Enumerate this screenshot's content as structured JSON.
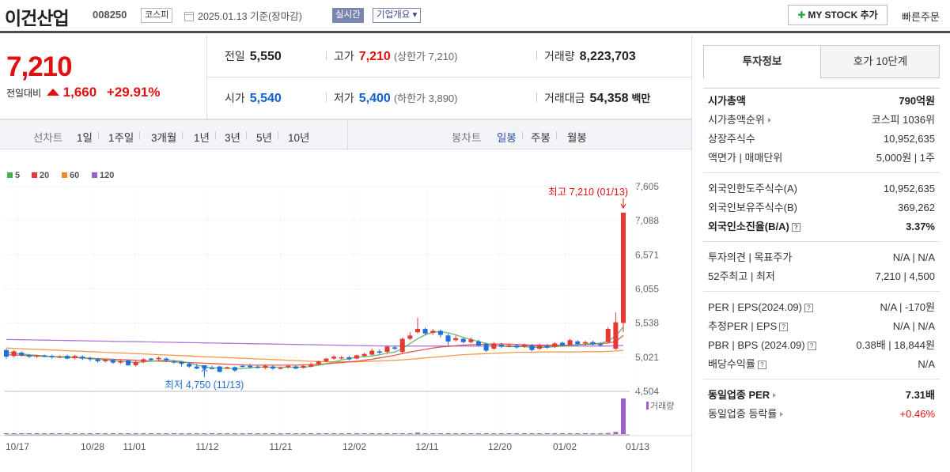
{
  "header": {
    "company": "이건산업",
    "code": "008250",
    "market": "코스피",
    "date": "2025.01.13 기준(장마감)",
    "realtime": "실시간",
    "overview": "기업개요 ▾",
    "mystock": "MY STOCK 추가",
    "quick_order": "빠른주문"
  },
  "price": {
    "current": "7,210",
    "change_label": "전일대비",
    "change": "1,660",
    "change_pct": "+29.91%",
    "prev_label": "전일",
    "prev": "5,550",
    "high_label": "고가",
    "high": "7,210",
    "upper_limit": "(상한가 7,210)",
    "volume_label": "거래량",
    "volume": "8,223,703",
    "open_label": "시가",
    "open": "5,540",
    "low_label": "저가",
    "low": "5,400",
    "lower_limit": "(하한가 3,890)",
    "amount_label": "거래대금",
    "amount": "54,358",
    "amount_unit": "백만"
  },
  "toolbar": {
    "line_label": "선차트",
    "periods": [
      "1일",
      "1주일",
      "3개월",
      "1년",
      "3년",
      "5년",
      "10년"
    ],
    "candle_label": "봉차트",
    "candles": [
      "일봉",
      "주봉",
      "월봉"
    ]
  },
  "tabs": [
    "투자정보",
    "호가 10단계"
  ],
  "invest": {
    "market_cap_label": "시가총액",
    "market_cap": "790억원",
    "rank_label": "시가총액순위",
    "rank": "코스피 1036위",
    "shares_label": "상장주식수",
    "shares": "10,952,635",
    "par_label": "액면가 | 매매단위",
    "par": "5,000원 | 1주",
    "foreign_limit_label": "외국인한도주식수(A)",
    "foreign_limit": "10,952,635",
    "foreign_hold_label": "외국인보유주식수(B)",
    "foreign_hold": "369,262",
    "foreign_rate_label": "외국인소진율(B/A)",
    "foreign_rate": "3.37%",
    "opinion_label": "투자의견 | 목표주가",
    "opinion": "N/A | N/A",
    "w52_label": "52주최고 | 최저",
    "w52": "7,210 | 4,500",
    "per_label": "PER | EPS(2024.09)",
    "per": "N/A | -170원",
    "est_per_label": "추정PER | EPS",
    "est_per": "N/A | N/A",
    "pbr_label": "PBR | BPS (2024.09)",
    "pbr": "0.38배 | 18,844원",
    "dividend_label": "배당수익률",
    "dividend": "N/A",
    "industry_per_label": "동일업종 PER",
    "industry_per": "7.31배",
    "industry_rate_label": "동일업종 등락률",
    "industry_rate": "+0.46%"
  },
  "chart_data": {
    "type": "candlestick",
    "ma_legend": [
      {
        "name": "5",
        "color": "#4caf50"
      },
      {
        "name": "20",
        "color": "#e53935"
      },
      {
        "name": "60",
        "color": "#f08a24"
      },
      {
        "name": "120",
        "color": "#9c5fd0"
      }
    ],
    "y_ticks": [
      7605,
      7088,
      6571,
      6055,
      5538,
      5021,
      4504
    ],
    "ylim": [
      4504,
      7605
    ],
    "x_ticks": [
      "10/17",
      "10/28",
      "11/01",
      "11/12",
      "11/21",
      "12/02",
      "12/11",
      "12/20",
      "01/02",
      "01/13"
    ],
    "high_annotation": "최고 7,210 (01/13)",
    "low_annotation": "최저 4,750 (11/13)",
    "volume_label": "거래량",
    "candles": [
      {
        "o": 5130,
        "c": 5030,
        "h": 5150,
        "l": 5000
      },
      {
        "o": 5040,
        "c": 5110,
        "h": 5130,
        "l": 5020
      },
      {
        "o": 5090,
        "c": 5050,
        "h": 5110,
        "l": 5030
      },
      {
        "o": 5050,
        "c": 5030,
        "h": 5070,
        "l": 5010
      },
      {
        "o": 5030,
        "c": 5050,
        "h": 5060,
        "l": 5010
      },
      {
        "o": 5050,
        "c": 5030,
        "h": 5060,
        "l": 5020
      },
      {
        "o": 5040,
        "c": 5020,
        "h": 5060,
        "l": 5000
      },
      {
        "o": 5030,
        "c": 5030,
        "h": 5050,
        "l": 5010
      },
      {
        "o": 5040,
        "c": 5000,
        "h": 5060,
        "l": 4990
      },
      {
        "o": 5010,
        "c": 5040,
        "h": 5060,
        "l": 4990
      },
      {
        "o": 5030,
        "c": 5000,
        "h": 5050,
        "l": 4980
      },
      {
        "o": 5010,
        "c": 4990,
        "h": 5030,
        "l": 4960
      },
      {
        "o": 4990,
        "c": 4960,
        "h": 5010,
        "l": 4940
      },
      {
        "o": 4960,
        "c": 4980,
        "h": 5000,
        "l": 4940
      },
      {
        "o": 4980,
        "c": 4940,
        "h": 4990,
        "l": 4920
      },
      {
        "o": 4940,
        "c": 4960,
        "h": 4980,
        "l": 4920
      },
      {
        "o": 4970,
        "c": 4900,
        "h": 4980,
        "l": 4890
      },
      {
        "o": 4900,
        "c": 4950,
        "h": 4970,
        "l": 4880
      },
      {
        "o": 4950,
        "c": 4990,
        "h": 5010,
        "l": 4930
      },
      {
        "o": 5000,
        "c": 4980,
        "h": 5010,
        "l": 4960
      },
      {
        "o": 4990,
        "c": 5010,
        "h": 5030,
        "l": 4970
      },
      {
        "o": 5000,
        "c": 4970,
        "h": 5020,
        "l": 4950
      },
      {
        "o": 4960,
        "c": 4940,
        "h": 4980,
        "l": 4920
      },
      {
        "o": 4950,
        "c": 4920,
        "h": 4960,
        "l": 4880
      },
      {
        "o": 4920,
        "c": 4880,
        "h": 4940,
        "l": 4860
      },
      {
        "o": 4880,
        "c": 4850,
        "h": 4920,
        "l": 4840
      },
      {
        "o": 4900,
        "c": 4850,
        "h": 4900,
        "l": 4750
      },
      {
        "o": 4860,
        "c": 4850,
        "h": 4890,
        "l": 4840
      },
      {
        "o": 4880,
        "c": 4800,
        "h": 4890,
        "l": 4790
      },
      {
        "o": 4870,
        "c": 4870,
        "h": 4880,
        "l": 4850
      },
      {
        "o": 4870,
        "c": 4820,
        "h": 4880,
        "l": 4800
      },
      {
        "o": 4890,
        "c": 4880,
        "h": 4910,
        "l": 4870
      },
      {
        "o": 4890,
        "c": 4870,
        "h": 4920,
        "l": 4850
      },
      {
        "o": 4880,
        "c": 4860,
        "h": 4900,
        "l": 4850
      },
      {
        "o": 4860,
        "c": 4890,
        "h": 4910,
        "l": 4840
      },
      {
        "o": 4880,
        "c": 4850,
        "h": 4900,
        "l": 4830
      },
      {
        "o": 4850,
        "c": 4860,
        "h": 4880,
        "l": 4840
      },
      {
        "o": 4870,
        "c": 4890,
        "h": 4900,
        "l": 4850
      },
      {
        "o": 4880,
        "c": 4850,
        "h": 4900,
        "l": 4840
      },
      {
        "o": 4860,
        "c": 4890,
        "h": 4900,
        "l": 4850
      },
      {
        "o": 4880,
        "c": 4910,
        "h": 4940,
        "l": 4870
      },
      {
        "o": 4920,
        "c": 4960,
        "h": 4970,
        "l": 4900
      },
      {
        "o": 4960,
        "c": 5000,
        "h": 5010,
        "l": 4940
      },
      {
        "o": 5000,
        "c": 5030,
        "h": 5050,
        "l": 4980
      },
      {
        "o": 5010,
        "c": 5020,
        "h": 5040,
        "l": 4990
      },
      {
        "o": 5020,
        "c": 4990,
        "h": 5040,
        "l": 4970
      },
      {
        "o": 5000,
        "c": 5050,
        "h": 5060,
        "l": 4990
      },
      {
        "o": 5040,
        "c": 5070,
        "h": 5090,
        "l": 5020
      },
      {
        "o": 5060,
        "c": 5120,
        "h": 5150,
        "l": 5050
      },
      {
        "o": 5110,
        "c": 5090,
        "h": 5140,
        "l": 5070
      },
      {
        "o": 5100,
        "c": 5180,
        "h": 5200,
        "l": 5080
      },
      {
        "o": 5170,
        "c": 5150,
        "h": 5200,
        "l": 5130
      },
      {
        "o": 5100,
        "c": 5300,
        "h": 5320,
        "l": 5080
      },
      {
        "o": 5300,
        "c": 5350,
        "h": 5400,
        "l": 5280
      },
      {
        "o": 5400,
        "c": 5450,
        "h": 5620,
        "l": 5380
      },
      {
        "o": 5450,
        "c": 5380,
        "h": 5470,
        "l": 5350
      },
      {
        "o": 5390,
        "c": 5420,
        "h": 5450,
        "l": 5360
      },
      {
        "o": 5420,
        "c": 5360,
        "h": 5440,
        "l": 5320
      },
      {
        "o": 5350,
        "c": 5260,
        "h": 5380,
        "l": 5200
      },
      {
        "o": 5280,
        "c": 5310,
        "h": 5350,
        "l": 5260
      },
      {
        "o": 5300,
        "c": 5250,
        "h": 5320,
        "l": 5230
      },
      {
        "o": 5250,
        "c": 5290,
        "h": 5320,
        "l": 5230
      },
      {
        "o": 5260,
        "c": 5200,
        "h": 5290,
        "l": 5180
      },
      {
        "o": 5220,
        "c": 5120,
        "h": 5240,
        "l": 5100
      },
      {
        "o": 5150,
        "c": 5230,
        "h": 5250,
        "l": 5130
      },
      {
        "o": 5210,
        "c": 5180,
        "h": 5240,
        "l": 5160
      },
      {
        "o": 5190,
        "c": 5200,
        "h": 5230,
        "l": 5170
      },
      {
        "o": 5200,
        "c": 5170,
        "h": 5220,
        "l": 5150
      },
      {
        "o": 5180,
        "c": 5210,
        "h": 5230,
        "l": 5160
      },
      {
        "o": 5200,
        "c": 5130,
        "h": 5220,
        "l": 5110
      },
      {
        "o": 5150,
        "c": 5200,
        "h": 5230,
        "l": 5130
      },
      {
        "o": 5190,
        "c": 5170,
        "h": 5220,
        "l": 5150
      },
      {
        "o": 5180,
        "c": 5230,
        "h": 5250,
        "l": 5160
      },
      {
        "o": 5240,
        "c": 5200,
        "h": 5260,
        "l": 5180
      },
      {
        "o": 5210,
        "c": 5280,
        "h": 5300,
        "l": 5190
      },
      {
        "o": 5260,
        "c": 5220,
        "h": 5280,
        "l": 5200
      },
      {
        "o": 5230,
        "c": 5250,
        "h": 5270,
        "l": 5200
      },
      {
        "o": 5250,
        "c": 5220,
        "h": 5270,
        "l": 5200
      },
      {
        "o": 5220,
        "c": 5210,
        "h": 5250,
        "l": 5180
      },
      {
        "o": 5250,
        "c": 5450,
        "h": 5480,
        "l": 5230
      },
      {
        "o": 5150,
        "c": 5550,
        "h": 5700,
        "l": 5130
      },
      {
        "o": 5540,
        "c": 7210,
        "h": 7210,
        "l": 5400
      }
    ],
    "ma5": [
      5100,
      5080,
      5070,
      5060,
      5050,
      5040,
      5030,
      5030,
      5030,
      5020,
      5010,
      5000,
      4990,
      4980,
      4970,
      4960,
      4950,
      4940,
      4950,
      4960,
      4970,
      4980,
      4970,
      4960,
      4930,
      4900,
      4880,
      4860,
      4860,
      4850,
      4850,
      4850,
      4860,
      4870,
      4870,
      4870,
      4870,
      4870,
      4870,
      4870,
      4880,
      4900,
      4920,
      4950,
      4980,
      5000,
      5020,
      5030,
      5040,
      5060,
      5080,
      5100,
      5150,
      5230,
      5300,
      5360,
      5400,
      5410,
      5390,
      5360,
      5320,
      5290,
      5260,
      5230,
      5200,
      5190,
      5180,
      5180,
      5180,
      5170,
      5170,
      5170,
      5180,
      5190,
      5200,
      5210,
      5220,
      5230,
      5230,
      5270,
      5340,
      5480
    ],
    "ma20": [
      5060,
      5055,
      5050,
      5045,
      5040,
      5035,
      5030,
      5025,
      5020,
      5015,
      5010,
      5005,
      5000,
      4995,
      4990,
      4985,
      4980,
      4975,
      4970,
      4965,
      4960,
      4955,
      4950,
      4945,
      4940,
      4935,
      4930,
      4925,
      4920,
      4915,
      4910,
      4905,
      4900,
      4900,
      4900,
      4900,
      4900,
      4900,
      4900,
      4905,
      4910,
      4915,
      4920,
      4930,
      4940,
      4950,
      4960,
      4975,
      4990,
      5010,
      5030,
      5050,
      5075,
      5100,
      5120,
      5140,
      5160,
      5175,
      5185,
      5195,
      5205,
      5210,
      5215,
      5220,
      5220,
      5220,
      5220,
      5215,
      5210,
      5205,
      5205,
      5205,
      5205,
      5205,
      5205,
      5210,
      5215,
      5220,
      5225,
      5235,
      5260,
      5350
    ],
    "ma60": [
      5160,
      5155,
      5150,
      5145,
      5140,
      5135,
      5130,
      5125,
      5120,
      5115,
      5110,
      5105,
      5100,
      5095,
      5090,
      5085,
      5080,
      5075,
      5070,
      5065,
      5060,
      5055,
      5050,
      5045,
      5040,
      5035,
      5030,
      5025,
      5020,
      5015,
      5010,
      5005,
      5000,
      4995,
      4990,
      4985,
      4980,
      4975,
      4970,
      4965,
      4960,
      4955,
      4950,
      4950,
      4950,
      4950,
      4950,
      4955,
      4960,
      4965,
      4970,
      4975,
      4980,
      4990,
      5000,
      5010,
      5020,
      5030,
      5040,
      5050,
      5060,
      5065,
      5070,
      5075,
      5080,
      5085,
      5090,
      5095,
      5095,
      5095,
      5100,
      5100,
      5100,
      5100,
      5100,
      5100,
      5105,
      5105,
      5105,
      5110,
      5115,
      5125
    ],
    "ma120": [
      5290,
      5288,
      5286,
      5284,
      5282,
      5280,
      5278,
      5276,
      5274,
      5272,
      5270,
      5268,
      5266,
      5264,
      5262,
      5260,
      5258,
      5256,
      5254,
      5252,
      5250,
      5248,
      5246,
      5244,
      5242,
      5240,
      5238,
      5236,
      5234,
      5232,
      5230,
      5228,
      5226,
      5224,
      5222,
      5220,
      5218,
      5216,
      5214,
      5212,
      5210,
      5208,
      5206,
      5204,
      5202,
      5200,
      5198,
      5196,
      5194,
      5192,
      5190,
      5190,
      5190,
      5190,
      5190,
      5190,
      5190,
      5190,
      5190,
      5190,
      5190,
      5190,
      5190,
      5190,
      5190,
      5190,
      5190,
      5190,
      5190,
      5190,
      5190,
      5190,
      5190,
      5190,
      5190,
      5190,
      5190,
      5190,
      5190,
      5190,
      5195,
      5200
    ],
    "volume": [
      0.02,
      0.01,
      0.01,
      0.01,
      0.01,
      0.01,
      0.01,
      0.01,
      0.01,
      0.01,
      0.01,
      0.01,
      0.01,
      0.01,
      0.01,
      0.01,
      0.01,
      0.01,
      0.01,
      0.01,
      0.01,
      0.01,
      0.01,
      0.01,
      0.01,
      0.01,
      0.01,
      0.01,
      0.01,
      0.01,
      0.01,
      0.01,
      0.01,
      0.01,
      0.01,
      0.01,
      0.01,
      0.01,
      0.01,
      0.01,
      0.01,
      0.01,
      0.01,
      0.01,
      0.01,
      0.01,
      0.01,
      0.01,
      0.01,
      0.01,
      0.01,
      0.01,
      0.01,
      0.02,
      0.04,
      0.02,
      0.01,
      0.01,
      0.01,
      0.01,
      0.01,
      0.01,
      0.01,
      0.01,
      0.01,
      0.01,
      0.01,
      0.01,
      0.01,
      0.01,
      0.01,
      0.01,
      0.01,
      0.01,
      0.01,
      0.01,
      0.01,
      0.01,
      0.01,
      0.03,
      0.06,
      1.0
    ]
  }
}
